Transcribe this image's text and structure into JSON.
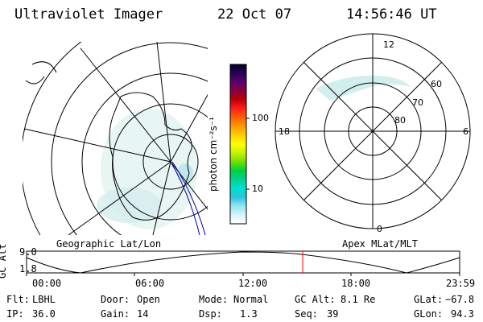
{
  "header": {
    "title": "Ultraviolet Imager",
    "date": "22 Oct 07",
    "time": "14:56:46 UT"
  },
  "colorbar": {
    "unit_label": "photon cm⁻²s⁻¹",
    "ticks": [
      "100",
      "10"
    ],
    "colors": [
      "#000033",
      "#2a0050",
      "#5a0070",
      "#8a0040",
      "#c00000",
      "#ff2020",
      "#ff6000",
      "#ff9900",
      "#ffd000",
      "#ffff00",
      "#c8f000",
      "#6ee000",
      "#00d040",
      "#00d090",
      "#00e0d0",
      "#30c0e0",
      "#90e8f0",
      "#d8f4f8",
      "#ffffff"
    ]
  },
  "left_map": {
    "label": "Geographic Lat/Lon"
  },
  "right_map": {
    "label": "Apex MLat/MLT",
    "mlt_labels": {
      "top": "12",
      "left": "18",
      "right": "6",
      "bottom": "0"
    },
    "lat_labels": [
      "60",
      "70",
      "80"
    ]
  },
  "gc_alt_plot": {
    "ylabel": "GC Alt",
    "yticks": [
      "9.0",
      "1.8"
    ],
    "xticks": [
      "00:00",
      "06:00",
      "12:00",
      "18:00",
      "23:59"
    ],
    "current_time_marker": "14:56",
    "marker_color": "#ff0000"
  },
  "info": {
    "flt_label": "Flt:",
    "flt_value": "LBHL",
    "door_label": "Door:",
    "door_value": "Open",
    "mode_label": "Mode:",
    "mode_value": "Normal",
    "gcalt_label": "GC Alt:",
    "gcalt_value": "8.1 Re",
    "glat_label": "GLat:",
    "glat_value": "−67.8",
    "ip_label": "IP:",
    "ip_value": "36.0",
    "gain_label": "Gain:",
    "gain_value": "14",
    "dsp_label": "Dsp:",
    "dsp_value": "1.3",
    "seq_label": "Seq:",
    "seq_value": "39",
    "glon_label": "GLon:",
    "glon_value": "94.3"
  }
}
